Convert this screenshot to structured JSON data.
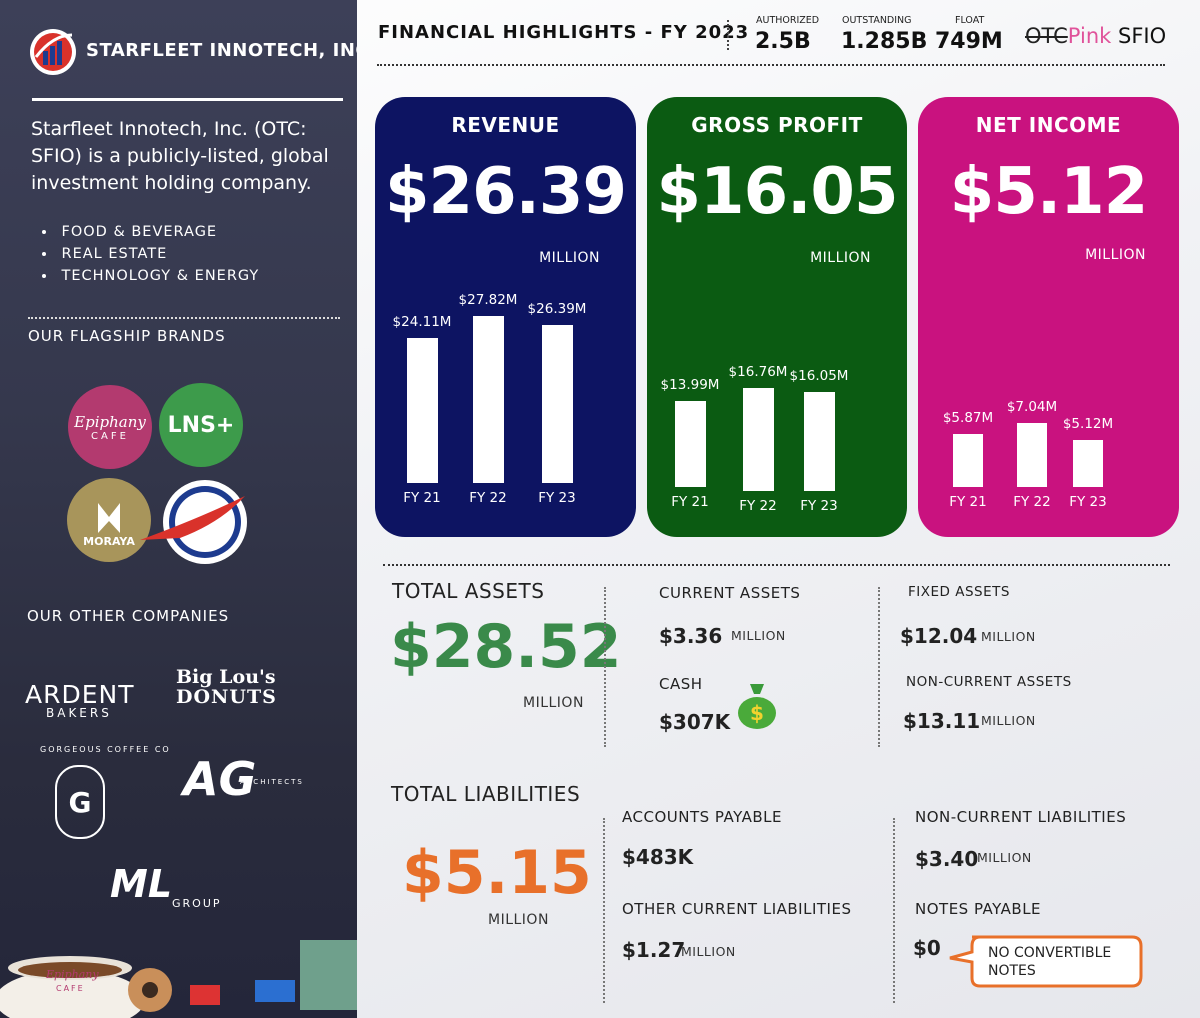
{
  "sidebar": {
    "company": "STARFLEET INNOTECH, INC",
    "description": "Starfleet Innotech, Inc. (OTC: SFIO) is a publicly-listed, global investment holding company.",
    "sectors": [
      "FOOD & BEVERAGE",
      "REAL ESTATE",
      "TECHNOLOGY & ENERGY"
    ],
    "flagship_heading": "OUR FLAGSHIP BRANDS",
    "flagship_brands": [
      {
        "name": "Epiphany",
        "tagline": "CAFE"
      },
      {
        "name": "LNS+"
      },
      {
        "name": "MORAYA"
      }
    ],
    "other_heading": "OUR OTHER COMPANIES",
    "other_companies": [
      {
        "name": "ARDENT",
        "tagline": "BAKERS"
      },
      {
        "name": "Big Lou's",
        "tagline": "DONUTS"
      },
      {
        "name": "G",
        "tagline": "GORGEOUS COFFEE CO"
      },
      {
        "name": "AG",
        "tagline": "ARCHITECTS"
      },
      {
        "name": "ML",
        "tagline": "GROUP"
      }
    ],
    "footer_brand": {
      "name": "Epiphany",
      "tagline": "CAFE"
    }
  },
  "header": {
    "title": "FINANCIAL HIGHLIGHTS - FY 2023",
    "shares": [
      {
        "label": "AUTHORIZED",
        "value": "2.5B"
      },
      {
        "label": "OUTSTANDING",
        "value": "1.285B"
      },
      {
        "label": "FLOAT",
        "value": "749M"
      }
    ],
    "market": "OTC",
    "tier": "Pink",
    "ticker": "SFIO"
  },
  "cards": [
    {
      "title": "REVENUE",
      "value": "$26.39",
      "unit": "MILLION",
      "color": "#0d1462",
      "chart": {
        "type": "bar",
        "categories": [
          "FY 21",
          "FY 22",
          "FY 23"
        ],
        "values": [
          24.11,
          27.82,
          26.39
        ],
        "value_labels": [
          "$24.11M",
          "$27.82M",
          "$26.39M"
        ]
      }
    },
    {
      "title": "GROSS PROFIT",
      "value": "$16.05",
      "unit": "MILLION",
      "color": "#0b5b12",
      "chart": {
        "type": "bar",
        "categories": [
          "FY 21",
          "FY 22",
          "FY 23"
        ],
        "values": [
          13.99,
          16.76,
          16.05
        ],
        "value_labels": [
          "$13.99M",
          "$16.76M",
          "$16.05M"
        ]
      }
    },
    {
      "title": "NET INCOME",
      "value": "$5.12",
      "unit": "MILLION",
      "color": "#c9127f",
      "chart": {
        "type": "bar",
        "categories": [
          "FY 21",
          "FY 22",
          "FY 23"
        ],
        "values": [
          5.87,
          7.04,
          5.12
        ],
        "value_labels": [
          "$5.87M",
          "$7.04M",
          "$5.12M"
        ]
      }
    }
  ],
  "assets": {
    "title": "TOTAL ASSETS",
    "value": "$28.52",
    "unit": "MILLION",
    "items": [
      {
        "label": "CURRENT ASSETS",
        "value": "$3.36",
        "unit": "MILLION"
      },
      {
        "label": "CASH",
        "value": "$307K"
      },
      {
        "label": "FIXED ASSETS",
        "value": "$12.04",
        "unit": "MILLION"
      },
      {
        "label": "NON-CURRENT ASSETS",
        "value": "$13.11",
        "unit": "MILLION"
      }
    ]
  },
  "liabilities": {
    "title": "TOTAL LIABILITIES",
    "value": "$5.15",
    "unit": "MILLION",
    "items": [
      {
        "label": "ACCOUNTS PAYABLE",
        "value": "$483K"
      },
      {
        "label": "OTHER CURRENT LIABILITIES",
        "value": "$1.27",
        "unit": "MILLION"
      },
      {
        "label": "NON-CURRENT LIABILITIES",
        "value": "$3.40",
        "unit": "MILLION"
      },
      {
        "label": "NOTES PAYABLE",
        "value": "$0",
        "note": "NO CONVERTIBLE NOTES"
      }
    ]
  }
}
